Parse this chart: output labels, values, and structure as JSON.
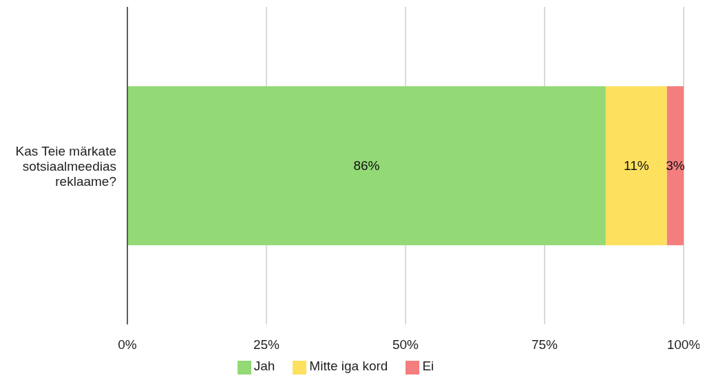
{
  "chart_data": {
    "type": "bar",
    "orientation": "horizontal",
    "stacked": true,
    "categories": [
      "Kas Teie märkate sotsiaalmeedias reklaame?"
    ],
    "series": [
      {
        "name": "Jah",
        "color": "#93d976",
        "values": [
          86
        ],
        "value_labels": [
          "86%"
        ]
      },
      {
        "name": "Mitte iga kord",
        "color": "#fde15e",
        "values": [
          11
        ],
        "value_labels": [
          "11%"
        ]
      },
      {
        "name": "Ei",
        "color": "#f47e7e",
        "values": [
          3
        ],
        "value_labels": [
          "3%"
        ]
      }
    ],
    "xlim": [
      0,
      100
    ],
    "xticks": [
      {
        "value": 0,
        "label": "0%"
      },
      {
        "value": 25,
        "label": "25%"
      },
      {
        "value": 50,
        "label": "50%"
      },
      {
        "value": 75,
        "label": "75%"
      },
      {
        "value": 100,
        "label": "100%"
      }
    ],
    "grid": "x",
    "legend": "bottom"
  }
}
